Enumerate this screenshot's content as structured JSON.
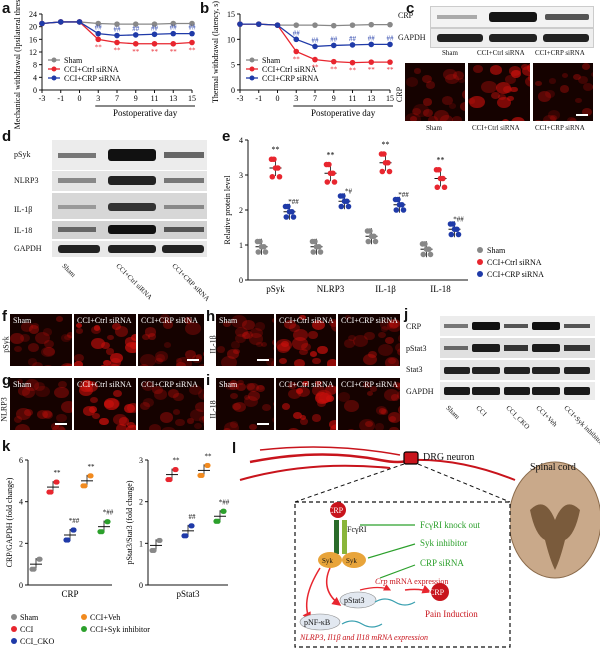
{
  "panels": {
    "a": "a",
    "b": "b",
    "c": "c",
    "d": "d",
    "e": "e",
    "f": "f",
    "g": "g",
    "h": "h",
    "i": "i",
    "j": "j",
    "k": "k",
    "l": "l"
  },
  "colors": {
    "sham": "#888888",
    "ctrl": "#e8262f",
    "crp": "#1f3aa8",
    "veh": "#f18a1f",
    "syk": "#2ca02c",
    "if_red": "#c8100c"
  },
  "groups3": {
    "sham": "Sham",
    "ctrl": "CCI+Ctrl siRNA",
    "crp": "CCI+CRP siRNA"
  },
  "groups4": {
    "sham": "Sham",
    "cci": "CCI",
    "cko": "CCI_CKO",
    "veh": "CCI+Veh",
    "syk": "CCI+Syk inhibitor"
  },
  "chart_data": [
    {
      "panel": "a",
      "type": "line",
      "ylabel": "Mechanical withdrawal (Ipsilateral threshold, g)",
      "xlabel": "Postoperative day",
      "x": [
        -3,
        -1,
        0,
        3,
        7,
        9,
        11,
        13,
        15
      ],
      "xticks": [
        "-3",
        "-1",
        "0",
        "3",
        "7",
        "9",
        "11",
        "13",
        "15"
      ],
      "ylim": [
        0,
        24
      ],
      "yticks": [
        "0",
        "4",
        "8",
        "12",
        "16",
        "20",
        "24"
      ],
      "series": [
        {
          "name": "Sham",
          "values": [
            21,
            21.5,
            21.5,
            21,
            20.8,
            20.8,
            20.8,
            21,
            21
          ]
        },
        {
          "name": "CCI+Ctrl siRNA",
          "values": [
            21,
            21.5,
            21.5,
            16,
            15,
            14.6,
            14.6,
            14.6,
            15
          ]
        },
        {
          "name": "CCI+CRP siRNA",
          "values": [
            21,
            21.5,
            21.5,
            17.8,
            17.2,
            17.4,
            17.6,
            17.8,
            17.8
          ]
        }
      ],
      "annotations": {
        "ctrl": "**",
        "crp": "##"
      },
      "legend": "bottom-left"
    },
    {
      "panel": "b",
      "type": "line",
      "ylabel": "Thermal withdrawal (latency, s)",
      "xlabel": "Postoperative day",
      "x": [
        -3,
        -1,
        0,
        3,
        7,
        9,
        11,
        13,
        15
      ],
      "xticks": [
        "-3",
        "-1",
        "0",
        "3",
        "7",
        "9",
        "11",
        "13",
        "15"
      ],
      "ylim": [
        0,
        15
      ],
      "yticks": [
        "0",
        "5",
        "10",
        "15"
      ],
      "series": [
        {
          "name": "Sham",
          "values": [
            13,
            13,
            12.8,
            12.8,
            12.8,
            12.7,
            12.8,
            12.9,
            12.9
          ]
        },
        {
          "name": "CCI+Ctrl siRNA",
          "values": [
            13,
            13,
            12.8,
            7.6,
            6,
            5.6,
            5.4,
            5.5,
            5.5
          ]
        },
        {
          "name": "CCI+CRP siRNA",
          "values": [
            13,
            13,
            12.8,
            10,
            8.6,
            8.8,
            8.9,
            9,
            9
          ]
        }
      ],
      "annotations": {
        "ctrl": "**",
        "crp": "##"
      },
      "legend": "bottom-left"
    },
    {
      "panel": "e",
      "type": "scatter",
      "ylabel": "Relative protein level",
      "categories": [
        "pSyk",
        "NLRP3",
        "IL-1β",
        "IL-18"
      ],
      "ylim": [
        0,
        4
      ],
      "yticks": [
        "0",
        "1",
        "2",
        "3",
        "4"
      ],
      "series": [
        {
          "name": "Sham",
          "values": [
            0.95,
            0.95,
            1.25,
            0.88
          ]
        },
        {
          "name": "CCI+Ctrl siRNA",
          "values": [
            3.2,
            3.05,
            3.35,
            2.9
          ]
        },
        {
          "name": "CCI+CRP siRNA",
          "values": [
            1.95,
            2.25,
            2.15,
            1.45
          ]
        }
      ],
      "annotations": {
        "ctrl": "**",
        "crp": [
          "*##",
          "*#",
          "*##",
          "*##"
        ]
      },
      "legend": "right"
    },
    {
      "panel": "k-left",
      "type": "scatter",
      "ylabel": "CRP/GAPDH (fold change)",
      "categories": [
        "CRP"
      ],
      "ylim": [
        0,
        6
      ],
      "yticks": [
        "0",
        "2",
        "4",
        "6"
      ],
      "series": [
        {
          "name": "Sham",
          "values": [
            1.0
          ]
        },
        {
          "name": "CCI",
          "values": [
            4.7
          ]
        },
        {
          "name": "CCI_CKO",
          "values": [
            2.4
          ]
        },
        {
          "name": "CCI+Veh",
          "values": [
            5.0
          ]
        },
        {
          "name": "CCI+Syk inhibitor",
          "values": [
            2.8
          ]
        }
      ],
      "annotations": {
        "cci": "**",
        "cko": "*##",
        "veh": "**",
        "syk": "*##"
      },
      "legend": "bottom-left"
    },
    {
      "panel": "k-right",
      "type": "scatter",
      "ylabel": "pStat3/Stat3 (fold change)",
      "categories": [
        "pStat3"
      ],
      "ylim": [
        0,
        3
      ],
      "yticks": [
        "0",
        "1",
        "2",
        "3"
      ],
      "series": [
        {
          "name": "Sham",
          "values": [
            0.95
          ]
        },
        {
          "name": "CCI",
          "values": [
            2.65
          ]
        },
        {
          "name": "CCI_CKO",
          "values": [
            1.3
          ]
        },
        {
          "name": "CCI+Veh",
          "values": [
            2.75
          ]
        },
        {
          "name": "CCI+Syk inhibitor",
          "values": [
            1.65
          ]
        }
      ],
      "annotations": {
        "cci": "**",
        "cko": "##",
        "veh": "**",
        "syk": "*##"
      }
    }
  ],
  "panel_c": {
    "row1": "CRP",
    "row2": "GAPDH",
    "side": "CRP"
  },
  "panel_d": {
    "rows": [
      "pSyk",
      "NLRP3",
      "IL-1β",
      "IL-18",
      "GAPDH"
    ]
  },
  "panel_f": {
    "side": "pSyk"
  },
  "panel_g": {
    "side": "NLRP3"
  },
  "panel_h": {
    "side": "IL-1β"
  },
  "panel_i": {
    "side": "IL-18"
  },
  "panel_j": {
    "rows": [
      "CRP",
      "pStat3",
      "Stat3",
      "GAPDH"
    ]
  },
  "panel_l": {
    "drg": "DRG neuron",
    "spinal": "Spinal cord",
    "crp": "CRP",
    "fcgr": "FcγRI",
    "syk": "Syk",
    "ko": "FcγRI knock out",
    "syk_inh": "Syk inhibitor",
    "crp_sirna": "CRP siRNA",
    "mrna_a": "Crp",
    "mrna_b": " mRNA expression",
    "pstat": "pStat3",
    "crp_out": "CRP",
    "pain": "Pain Induction",
    "nfkb": "pNF-κB",
    "nlrp_mrna": "NLRP3, Il1β and Il18 mRNA expression"
  }
}
